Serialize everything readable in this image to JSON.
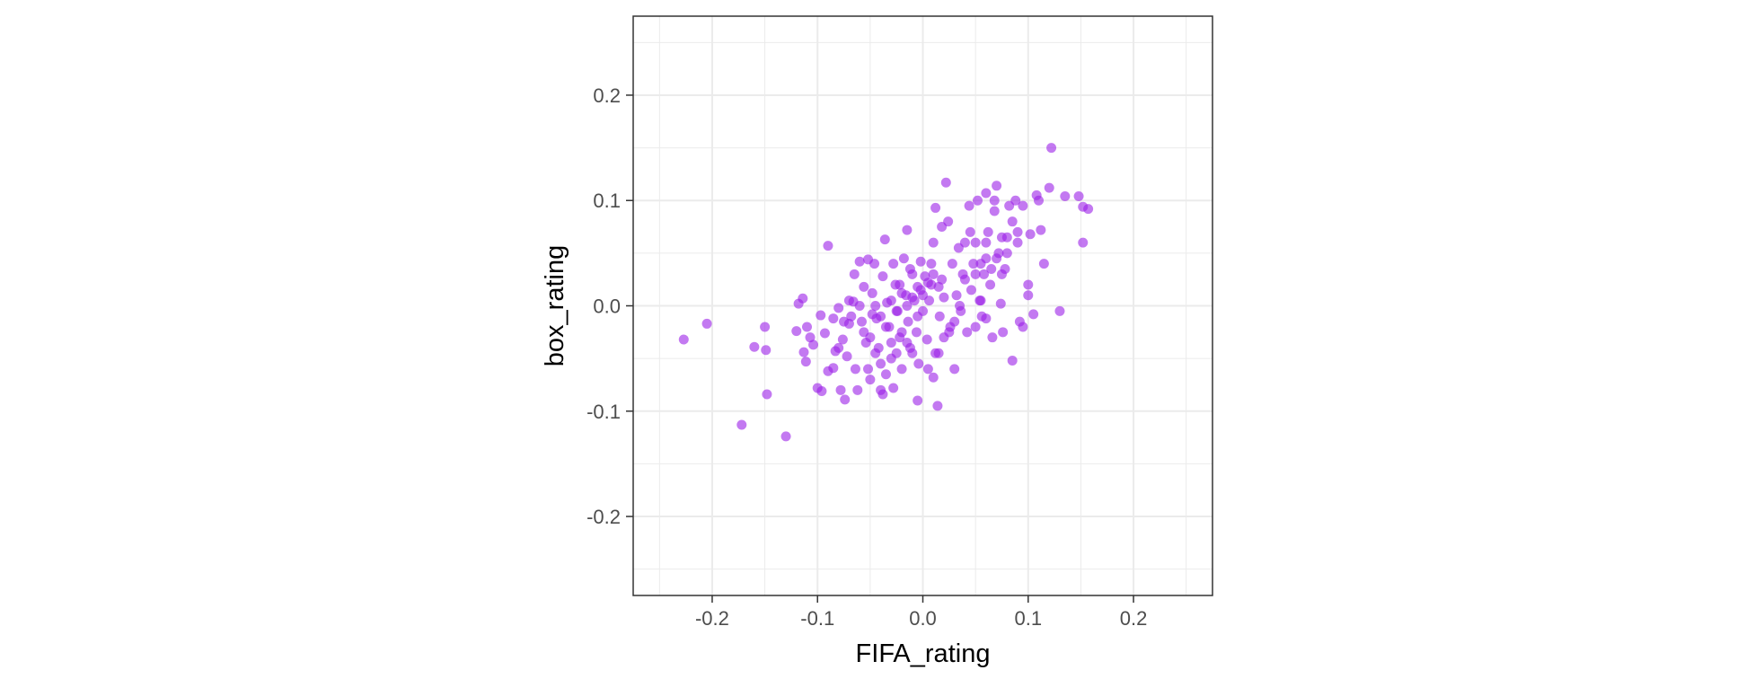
{
  "chart_data": {
    "type": "scatter",
    "title": "",
    "xlabel": "FIFA_rating",
    "ylabel": "box_rating",
    "xlim": [
      -0.275,
      0.275
    ],
    "ylim": [
      -0.275,
      0.275
    ],
    "x_ticks": [
      -0.2,
      -0.1,
      0.0,
      0.1,
      0.2
    ],
    "x_tick_labels": [
      "-0.2",
      "-0.1",
      "0.0",
      "0.1",
      "0.2"
    ],
    "y_ticks": [
      -0.2,
      -0.1,
      0.0,
      0.1,
      0.2
    ],
    "y_tick_labels": [
      "-0.2",
      "-0.1",
      "0.0",
      "0.1",
      "0.2"
    ],
    "grid": true,
    "point_color": "#9b1fe8",
    "point_opacity": 0.6,
    "panel_background": "#ffffff",
    "grid_color": "#ebebeb",
    "points": [
      {
        "x": -0.227,
        "y": -0.032
      },
      {
        "x": -0.205,
        "y": -0.017
      },
      {
        "x": -0.172,
        "y": -0.113
      },
      {
        "x": -0.16,
        "y": -0.039
      },
      {
        "x": -0.15,
        "y": -0.02
      },
      {
        "x": -0.149,
        "y": -0.042
      },
      {
        "x": -0.148,
        "y": -0.084
      },
      {
        "x": -0.13,
        "y": -0.124
      },
      {
        "x": -0.118,
        "y": 0.002
      },
      {
        "x": -0.114,
        "y": 0.007
      },
      {
        "x": -0.12,
        "y": -0.024
      },
      {
        "x": -0.11,
        "y": -0.02
      },
      {
        "x": -0.113,
        "y": -0.044
      },
      {
        "x": -0.111,
        "y": -0.053
      },
      {
        "x": -0.107,
        "y": -0.03
      },
      {
        "x": -0.104,
        "y": -0.037
      },
      {
        "x": -0.1,
        "y": -0.078
      },
      {
        "x": -0.096,
        "y": -0.081
      },
      {
        "x": -0.097,
        "y": -0.009
      },
      {
        "x": -0.093,
        "y": -0.026
      },
      {
        "x": -0.09,
        "y": -0.062
      },
      {
        "x": -0.085,
        "y": -0.059
      },
      {
        "x": -0.083,
        "y": -0.043
      },
      {
        "x": -0.08,
        "y": -0.04
      },
      {
        "x": -0.078,
        "y": -0.08
      },
      {
        "x": -0.076,
        "y": -0.032
      },
      {
        "x": -0.074,
        "y": -0.089
      },
      {
        "x": -0.072,
        "y": -0.048
      },
      {
        "x": -0.07,
        "y": -0.017
      },
      {
        "x": -0.068,
        "y": -0.01
      },
      {
        "x": -0.066,
        "y": 0.004
      },
      {
        "x": -0.064,
        "y": -0.06
      },
      {
        "x": -0.062,
        "y": -0.08
      },
      {
        "x": -0.06,
        "y": 0.0
      },
      {
        "x": -0.058,
        "y": -0.015
      },
      {
        "x": -0.056,
        "y": -0.025
      },
      {
        "x": -0.054,
        "y": -0.035
      },
      {
        "x": -0.052,
        "y": -0.06
      },
      {
        "x": -0.05,
        "y": -0.07
      },
      {
        "x": -0.048,
        "y": 0.012
      },
      {
        "x": -0.046,
        "y": 0.04
      },
      {
        "x": -0.044,
        "y": -0.012
      },
      {
        "x": -0.042,
        "y": -0.04
      },
      {
        "x": -0.04,
        "y": -0.08
      },
      {
        "x": -0.038,
        "y": -0.084
      },
      {
        "x": -0.036,
        "y": 0.063
      },
      {
        "x": -0.034,
        "y": 0.003
      },
      {
        "x": -0.032,
        "y": -0.02
      },
      {
        "x": -0.03,
        "y": -0.05
      },
      {
        "x": -0.028,
        "y": -0.078
      },
      {
        "x": -0.026,
        "y": 0.02
      },
      {
        "x": -0.024,
        "y": -0.005
      },
      {
        "x": -0.022,
        "y": -0.03
      },
      {
        "x": -0.02,
        "y": -0.06
      },
      {
        "x": -0.018,
        "y": 0.045
      },
      {
        "x": -0.016,
        "y": 0.01
      },
      {
        "x": -0.014,
        "y": -0.015
      },
      {
        "x": -0.012,
        "y": -0.04
      },
      {
        "x": -0.01,
        "y": 0.03
      },
      {
        "x": -0.008,
        "y": 0.005
      },
      {
        "x": -0.006,
        "y": -0.025
      },
      {
        "x": -0.004,
        "y": -0.055
      },
      {
        "x": -0.002,
        "y": 0.015
      },
      {
        "x": 0.0,
        "y": -0.005
      },
      {
        "x": 0.002,
        "y": 0.028
      },
      {
        "x": 0.004,
        "y": -0.032
      },
      {
        "x": 0.006,
        "y": 0.005
      },
      {
        "x": 0.008,
        "y": 0.02
      },
      {
        "x": 0.01,
        "y": 0.06
      },
      {
        "x": 0.012,
        "y": -0.045
      },
      {
        "x": 0.014,
        "y": -0.095
      },
      {
        "x": 0.016,
        "y": -0.01
      },
      {
        "x": 0.018,
        "y": 0.025
      },
      {
        "x": 0.02,
        "y": -0.03
      },
      {
        "x": 0.022,
        "y": 0.117
      },
      {
        "x": 0.024,
        "y": 0.08
      },
      {
        "x": 0.026,
        "y": -0.02
      },
      {
        "x": 0.028,
        "y": 0.04
      },
      {
        "x": 0.03,
        "y": -0.06
      },
      {
        "x": 0.032,
        "y": 0.01
      },
      {
        "x": 0.034,
        "y": 0.055
      },
      {
        "x": 0.036,
        "y": -0.005
      },
      {
        "x": 0.038,
        "y": 0.03
      },
      {
        "x": 0.04,
        "y": 0.06
      },
      {
        "x": 0.042,
        "y": -0.025
      },
      {
        "x": 0.044,
        "y": 0.095
      },
      {
        "x": 0.046,
        "y": 0.015
      },
      {
        "x": 0.048,
        "y": 0.04
      },
      {
        "x": 0.05,
        "y": 0.06
      },
      {
        "x": 0.052,
        "y": 0.1
      },
      {
        "x": 0.054,
        "y": 0.005
      },
      {
        "x": 0.056,
        "y": -0.01
      },
      {
        "x": 0.058,
        "y": 0.03
      },
      {
        "x": 0.06,
        "y": 0.045
      },
      {
        "x": 0.062,
        "y": 0.07
      },
      {
        "x": 0.064,
        "y": 0.02
      },
      {
        "x": 0.066,
        "y": -0.03
      },
      {
        "x": 0.068,
        "y": 0.09
      },
      {
        "x": 0.07,
        "y": 0.114
      },
      {
        "x": 0.072,
        "y": 0.05
      },
      {
        "x": 0.074,
        "y": 0.002
      },
      {
        "x": 0.076,
        "y": -0.025
      },
      {
        "x": 0.078,
        "y": 0.035
      },
      {
        "x": 0.08,
        "y": 0.065
      },
      {
        "x": 0.082,
        "y": 0.095
      },
      {
        "x": 0.085,
        "y": -0.052
      },
      {
        "x": 0.088,
        "y": 0.1
      },
      {
        "x": 0.09,
        "y": 0.07
      },
      {
        "x": 0.092,
        "y": -0.015
      },
      {
        "x": 0.095,
        "y": -0.02
      },
      {
        "x": 0.1,
        "y": 0.01
      },
      {
        "x": 0.102,
        "y": 0.068
      },
      {
        "x": 0.105,
        "y": -0.008
      },
      {
        "x": 0.108,
        "y": 0.105
      },
      {
        "x": 0.11,
        "y": 0.1
      },
      {
        "x": 0.112,
        "y": 0.072
      },
      {
        "x": 0.115,
        "y": 0.04
      },
      {
        "x": 0.12,
        "y": 0.112
      },
      {
        "x": 0.122,
        "y": 0.15
      },
      {
        "x": 0.13,
        "y": -0.005
      },
      {
        "x": 0.135,
        "y": 0.104
      },
      {
        "x": 0.148,
        "y": 0.104
      },
      {
        "x": 0.152,
        "y": 0.06
      },
      {
        "x": 0.152,
        "y": 0.094
      },
      {
        "x": 0.157,
        "y": 0.092
      },
      {
        "x": -0.045,
        "y": 0.0
      },
      {
        "x": -0.04,
        "y": -0.01
      },
      {
        "x": -0.035,
        "y": -0.02
      },
      {
        "x": -0.03,
        "y": 0.005
      },
      {
        "x": -0.025,
        "y": -0.005
      },
      {
        "x": -0.02,
        "y": 0.012
      },
      {
        "x": -0.015,
        "y": 0.0
      },
      {
        "x": -0.01,
        "y": 0.008
      },
      {
        "x": -0.005,
        "y": 0.018
      },
      {
        "x": 0.0,
        "y": 0.01
      },
      {
        "x": 0.005,
        "y": 0.022
      },
      {
        "x": 0.01,
        "y": 0.03
      },
      {
        "x": 0.015,
        "y": 0.018
      },
      {
        "x": 0.02,
        "y": 0.008
      },
      {
        "x": -0.05,
        "y": -0.03
      },
      {
        "x": -0.045,
        "y": -0.045
      },
      {
        "x": -0.04,
        "y": -0.055
      },
      {
        "x": -0.035,
        "y": -0.065
      },
      {
        "x": -0.03,
        "y": -0.035
      },
      {
        "x": -0.025,
        "y": -0.045
      },
      {
        "x": -0.02,
        "y": -0.025
      },
      {
        "x": -0.015,
        "y": -0.035
      },
      {
        "x": -0.01,
        "y": -0.045
      },
      {
        "x": -0.005,
        "y": -0.01
      },
      {
        "x": 0.045,
        "y": 0.07
      },
      {
        "x": 0.05,
        "y": 0.03
      },
      {
        "x": 0.055,
        "y": 0.04
      },
      {
        "x": 0.06,
        "y": 0.06
      },
      {
        "x": 0.065,
        "y": 0.035
      },
      {
        "x": 0.07,
        "y": 0.045
      },
      {
        "x": 0.075,
        "y": 0.03
      },
      {
        "x": 0.068,
        "y": 0.1
      },
      {
        "x": 0.06,
        "y": 0.107
      },
      {
        "x": 0.085,
        "y": 0.08
      },
      {
        "x": 0.09,
        "y": 0.06
      },
      {
        "x": 0.04,
        "y": 0.025
      },
      {
        "x": 0.035,
        "y": 0.0
      },
      {
        "x": 0.03,
        "y": -0.015
      },
      {
        "x": 0.025,
        "y": -0.025
      },
      {
        "x": -0.06,
        "y": 0.042
      },
      {
        "x": -0.052,
        "y": 0.044
      },
      {
        "x": -0.065,
        "y": 0.03
      },
      {
        "x": -0.07,
        "y": 0.005
      },
      {
        "x": -0.075,
        "y": -0.015
      },
      {
        "x": -0.08,
        "y": -0.002
      },
      {
        "x": -0.085,
        "y": -0.012
      },
      {
        "x": 0.005,
        "y": -0.06
      },
      {
        "x": 0.01,
        "y": -0.068
      },
      {
        "x": -0.005,
        "y": -0.09
      },
      {
        "x": 0.015,
        "y": -0.045
      },
      {
        "x": 0.05,
        "y": -0.02
      },
      {
        "x": 0.055,
        "y": 0.005
      },
      {
        "x": 0.06,
        "y": -0.012
      },
      {
        "x": 0.1,
        "y": 0.02
      },
      {
        "x": 0.095,
        "y": 0.095
      },
      {
        "x": 0.08,
        "y": 0.05
      },
      {
        "x": 0.075,
        "y": 0.065
      },
      {
        "x": -0.015,
        "y": 0.072
      },
      {
        "x": 0.012,
        "y": 0.093
      },
      {
        "x": 0.018,
        "y": 0.075
      },
      {
        "x": -0.09,
        "y": 0.057
      },
      {
        "x": -0.056,
        "y": 0.018
      },
      {
        "x": -0.048,
        "y": -0.008
      },
      {
        "x": -0.038,
        "y": 0.028
      },
      {
        "x": -0.028,
        "y": 0.04
      },
      {
        "x": -0.022,
        "y": 0.02
      },
      {
        "x": -0.012,
        "y": 0.035
      },
      {
        "x": -0.002,
        "y": 0.042
      },
      {
        "x": 0.008,
        "y": 0.04
      }
    ]
  }
}
